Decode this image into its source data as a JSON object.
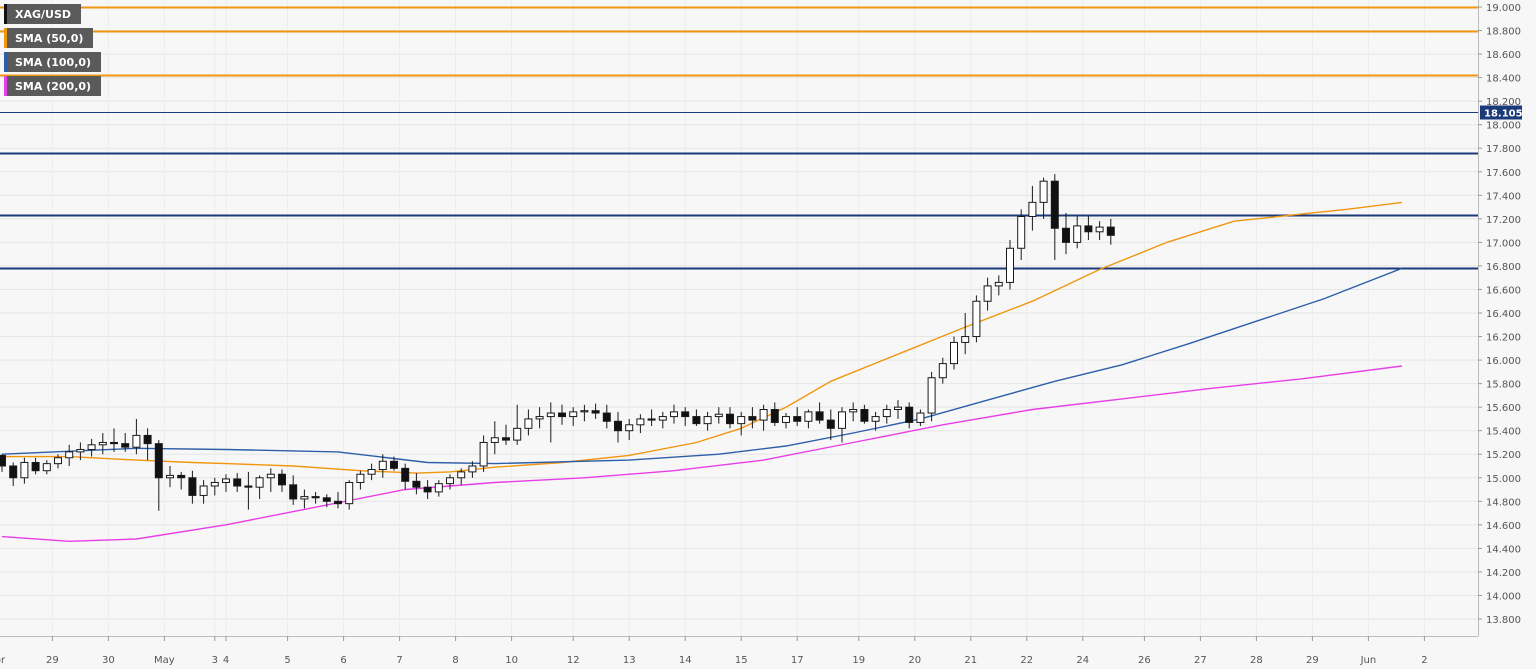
{
  "chart_data": {
    "type": "candlestick",
    "symbol": "XAG/USD",
    "current_price_label": "18.105",
    "current_price": 18.105,
    "y_range": [
      13.8,
      19.0
    ],
    "y_ticks": [
      "19.000",
      "18.800",
      "18.600",
      "18.400",
      "18.200",
      "18.000",
      "17.800",
      "17.600",
      "17.400",
      "17.200",
      "17.000",
      "16.800",
      "16.600",
      "16.400",
      "16.200",
      "16.000",
      "15.800",
      "15.600",
      "15.400",
      "15.200",
      "15.000",
      "14.800",
      "14.600",
      "14.400",
      "14.200",
      "14.000",
      "13.800"
    ],
    "x_ticks": [
      {
        "label": "Apr",
        "index": -0.5
      },
      {
        "label": "29",
        "index": 4.5
      },
      {
        "label": "30",
        "index": 9.5
      },
      {
        "label": "May",
        "index": 14.5
      },
      {
        "label": "3",
        "index": 19
      },
      {
        "label": "4",
        "index": 20
      },
      {
        "label": "5",
        "index": 25.5
      },
      {
        "label": "6",
        "index": 30.5
      },
      {
        "label": "7",
        "index": 35.5
      },
      {
        "label": "8",
        "index": 40.5
      },
      {
        "label": "10",
        "index": 45.5
      },
      {
        "label": "12",
        "index": 51
      },
      {
        "label": "13",
        "index": 56
      },
      {
        "label": "14",
        "index": 61
      },
      {
        "label": "15",
        "index": 66
      },
      {
        "label": "17",
        "index": 71
      },
      {
        "label": "19",
        "index": 76.5
      },
      {
        "label": "20",
        "index": 81.5
      },
      {
        "label": "21",
        "index": 86.5
      },
      {
        "label": "22",
        "index": 91.5
      },
      {
        "label": "24",
        "index": 96.5
      },
      {
        "label": "26",
        "index": 102
      },
      {
        "label": "27",
        "index": 107
      },
      {
        "label": "28",
        "index": 112
      },
      {
        "label": "29",
        "index": 117
      },
      {
        "label": "Jun",
        "index": 122
      },
      {
        "label": "2",
        "index": 127
      }
    ],
    "horizontal_levels": [
      {
        "value": 19.0,
        "color": "#f0960f"
      },
      {
        "value": 18.8,
        "color": "#f0960f"
      },
      {
        "value": 18.42,
        "color": "#f0960f"
      },
      {
        "value": 17.76,
        "color": "#1b3a7a"
      },
      {
        "value": 17.23,
        "color": "#1b3a7a"
      },
      {
        "value": 16.78,
        "color": "#1b3a7a"
      }
    ],
    "price_line_color": "#1b3a7a",
    "series": [
      {
        "name": "SMA (50,0)",
        "color": "#f0960f",
        "x": [
          0,
          6,
          12,
          17,
          20,
          26,
          32,
          37,
          40,
          44,
          50,
          56,
          62,
          66,
          70,
          74,
          80,
          86,
          92,
          98,
          104,
          110,
          116,
          120,
          125
        ],
        "values": [
          15.18,
          15.18,
          15.15,
          15.13,
          15.12,
          15.1,
          15.06,
          15.04,
          15.05,
          15.09,
          15.13,
          15.19,
          15.3,
          15.42,
          15.6,
          15.82,
          16.05,
          16.28,
          16.5,
          16.77,
          17.0,
          17.18,
          17.24,
          17.28,
          17.34
        ]
      },
      {
        "name": "SMA (100,0)",
        "color": "#2d5fa8",
        "x": [
          0,
          12,
          20,
          30,
          38,
          44,
          56,
          64,
          70,
          76,
          82,
          88,
          94,
          100,
          106,
          112,
          118,
          125
        ],
        "values": [
          15.2,
          15.25,
          15.24,
          15.22,
          15.13,
          15.12,
          15.15,
          15.2,
          15.27,
          15.38,
          15.5,
          15.66,
          15.82,
          15.96,
          16.14,
          16.33,
          16.52,
          16.78
        ]
      },
      {
        "name": "SMA (200,0)",
        "color": "#e83ee8",
        "x": [
          0,
          6,
          12,
          20,
          28,
          36,
          44,
          52,
          60,
          68,
          76,
          84,
          92,
          100,
          108,
          116,
          125
        ],
        "values": [
          14.5,
          14.46,
          14.48,
          14.6,
          14.75,
          14.9,
          14.96,
          15.0,
          15.06,
          15.15,
          15.3,
          15.45,
          15.58,
          15.67,
          15.76,
          15.84,
          15.95
        ]
      }
    ],
    "candles": [
      [
        15.19,
        15.2,
        15.05,
        15.1
      ],
      [
        15.1,
        15.13,
        14.93,
        15.0
      ],
      [
        15.0,
        15.17,
        14.95,
        15.13
      ],
      [
        15.13,
        15.17,
        15.03,
        15.06
      ],
      [
        15.06,
        15.15,
        15.03,
        15.12
      ],
      [
        15.12,
        15.2,
        15.08,
        15.17
      ],
      [
        15.17,
        15.28,
        15.1,
        15.22
      ],
      [
        15.22,
        15.3,
        15.15,
        15.24
      ],
      [
        15.24,
        15.33,
        15.18,
        15.28
      ],
      [
        15.28,
        15.38,
        15.2,
        15.3
      ],
      [
        15.3,
        15.42,
        15.22,
        15.29
      ],
      [
        15.29,
        15.38,
        15.22,
        15.26
      ],
      [
        15.26,
        15.5,
        15.2,
        15.36
      ],
      [
        15.36,
        15.42,
        15.15,
        15.29
      ],
      [
        15.29,
        15.32,
        14.72,
        15.0
      ],
      [
        15.0,
        15.1,
        14.92,
        15.02
      ],
      [
        15.02,
        15.05,
        14.9,
        15.0
      ],
      [
        15.0,
        15.06,
        14.78,
        14.85
      ],
      [
        14.85,
        14.98,
        14.78,
        14.93
      ],
      [
        14.93,
        15.0,
        14.85,
        14.96
      ],
      [
        14.96,
        15.03,
        14.88,
        14.99
      ],
      [
        14.99,
        15.04,
        14.88,
        14.93
      ],
      [
        14.93,
        15.05,
        14.73,
        14.92
      ],
      [
        14.92,
        15.02,
        14.82,
        15.0
      ],
      [
        15.0,
        15.08,
        14.88,
        15.03
      ],
      [
        15.03,
        15.07,
        14.88,
        14.94
      ],
      [
        14.94,
        15.02,
        14.77,
        14.82
      ],
      [
        14.82,
        14.9,
        14.74,
        14.84
      ],
      [
        14.84,
        14.88,
        14.78,
        14.83
      ],
      [
        14.83,
        14.86,
        14.75,
        14.8
      ],
      [
        14.8,
        14.88,
        14.74,
        14.78
      ],
      [
        14.78,
        14.98,
        14.73,
        14.96
      ],
      [
        14.96,
        15.06,
        14.9,
        15.03
      ],
      [
        15.03,
        15.12,
        14.98,
        15.07
      ],
      [
        15.07,
        15.2,
        15.0,
        15.14
      ],
      [
        15.14,
        15.18,
        15.06,
        15.08
      ],
      [
        15.08,
        15.12,
        14.9,
        14.97
      ],
      [
        14.97,
        15.04,
        14.86,
        14.92
      ],
      [
        14.92,
        14.98,
        14.82,
        14.88
      ],
      [
        14.88,
        14.98,
        14.84,
        14.95
      ],
      [
        14.95,
        15.03,
        14.9,
        15.0
      ],
      [
        15.0,
        15.08,
        14.94,
        15.05
      ],
      [
        15.05,
        15.14,
        15.0,
        15.1
      ],
      [
        15.1,
        15.36,
        15.05,
        15.3
      ],
      [
        15.3,
        15.48,
        15.2,
        15.34
      ],
      [
        15.34,
        15.45,
        15.28,
        15.32
      ],
      [
        15.32,
        15.62,
        15.28,
        15.42
      ],
      [
        15.42,
        15.58,
        15.36,
        15.5
      ],
      [
        15.5,
        15.6,
        15.42,
        15.52
      ],
      [
        15.52,
        15.64,
        15.3,
        15.55
      ],
      [
        15.55,
        15.62,
        15.45,
        15.52
      ],
      [
        15.52,
        15.6,
        15.44,
        15.56
      ],
      [
        15.56,
        15.62,
        15.48,
        15.57
      ],
      [
        15.57,
        15.63,
        15.5,
        15.55
      ],
      [
        15.55,
        15.62,
        15.42,
        15.48
      ],
      [
        15.48,
        15.56,
        15.3,
        15.4
      ],
      [
        15.4,
        15.5,
        15.32,
        15.45
      ],
      [
        15.45,
        15.54,
        15.38,
        15.5
      ],
      [
        15.5,
        15.58,
        15.44,
        15.49
      ],
      [
        15.49,
        15.56,
        15.42,
        15.52
      ],
      [
        15.52,
        15.62,
        15.46,
        15.56
      ],
      [
        15.56,
        15.6,
        15.44,
        15.52
      ],
      [
        15.52,
        15.58,
        15.44,
        15.46
      ],
      [
        15.46,
        15.56,
        15.4,
        15.52
      ],
      [
        15.52,
        15.6,
        15.46,
        15.54
      ],
      [
        15.54,
        15.6,
        15.42,
        15.46
      ],
      [
        15.46,
        15.56,
        15.36,
        15.52
      ],
      [
        15.52,
        15.6,
        15.42,
        15.49
      ],
      [
        15.49,
        15.62,
        15.4,
        15.58
      ],
      [
        15.58,
        15.64,
        15.44,
        15.47
      ],
      [
        15.47,
        15.55,
        15.42,
        15.52
      ],
      [
        15.52,
        15.6,
        15.44,
        15.48
      ],
      [
        15.48,
        15.58,
        15.42,
        15.56
      ],
      [
        15.56,
        15.64,
        15.46,
        15.49
      ],
      [
        15.49,
        15.58,
        15.32,
        15.42
      ],
      [
        15.42,
        15.6,
        15.3,
        15.56
      ],
      [
        15.56,
        15.64,
        15.48,
        15.58
      ],
      [
        15.58,
        15.62,
        15.46,
        15.48
      ],
      [
        15.48,
        15.56,
        15.4,
        15.52
      ],
      [
        15.52,
        15.62,
        15.46,
        15.58
      ],
      [
        15.58,
        15.66,
        15.5,
        15.6
      ],
      [
        15.6,
        15.64,
        15.42,
        15.47
      ],
      [
        15.47,
        15.58,
        15.44,
        15.55
      ],
      [
        15.55,
        15.9,
        15.48,
        15.85
      ],
      [
        15.85,
        16.02,
        15.8,
        15.97
      ],
      [
        15.97,
        16.2,
        15.92,
        16.15
      ],
      [
        16.15,
        16.4,
        16.05,
        16.2
      ],
      [
        16.2,
        16.55,
        16.15,
        16.5
      ],
      [
        16.5,
        16.7,
        16.42,
        16.63
      ],
      [
        16.63,
        16.72,
        16.55,
        16.66
      ],
      [
        16.66,
        17.02,
        16.6,
        16.95
      ],
      [
        16.95,
        17.28,
        16.85,
        17.22
      ],
      [
        17.22,
        17.48,
        17.1,
        17.34
      ],
      [
        17.34,
        17.55,
        17.2,
        17.52
      ],
      [
        17.52,
        17.58,
        16.85,
        17.12
      ],
      [
        17.12,
        17.25,
        16.9,
        17.0
      ],
      [
        17.0,
        17.22,
        16.95,
        17.14
      ],
      [
        17.14,
        17.22,
        17.02,
        17.09
      ],
      [
        17.09,
        17.18,
        17.02,
        17.13
      ],
      [
        17.13,
        17.2,
        16.98,
        17.06
      ]
    ]
  }
}
